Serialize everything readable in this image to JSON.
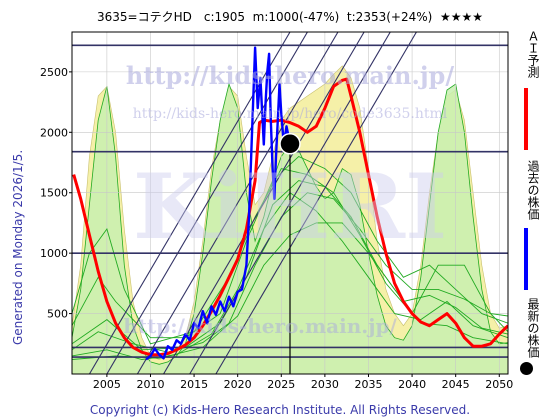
{
  "header": {
    "title": "3635=コテクHD　c:1905  m:1000(-47%)  t:2353(+24%)  ★★★★"
  },
  "side_note": "Generated on Monday 2026/1/5.",
  "watermarks": {
    "url_main": "http://kids-hero.main.jp/",
    "url_code": "http://kids-hero.main.jp/hero/code3635.html",
    "brand_big": "KiHRI",
    "brand_small": "http://kids-hero.main.jp/"
  },
  "copyright": "Copyright (c) Kids-Hero Research Institute. All Rights Reserved.",
  "legend": {
    "ai_label": "ＡＩ予測",
    "past_label": "過去の株価",
    "latest_label": "最新の株価"
  },
  "colors": {
    "ai_forecast": "#ff0000",
    "past_price": "#0000ff",
    "latest_dot": "#000000",
    "band_fill": "#f5f0a8",
    "green_fill": "#c8f0b0",
    "green_line": "#22aa22",
    "hline": "#333366",
    "diag": "#333366",
    "grid": "#c8c8c8"
  },
  "chart_data": {
    "type": "line",
    "xlim": [
      2001,
      2051
    ],
    "ylim": [
      0,
      2830
    ],
    "x_ticks": [
      "2005",
      "2010",
      "2015",
      "2020",
      "2025",
      "2030",
      "2035",
      "2040",
      "2045",
      "2050"
    ],
    "y_ticks": [
      "500",
      "1000",
      "1500",
      "2000",
      "2500"
    ],
    "grid": true,
    "reference_levels": [
      2720,
      1840,
      1000,
      220,
      140
    ],
    "current": {
      "x": 2026.0,
      "y": 1905
    },
    "current_year_marker": 2026.0,
    "diagonal_lines": [
      {
        "x1": 2011.5,
        "y1": 0,
        "x2": 2034.5,
        "y2": 2830
      },
      {
        "x1": 2008.5,
        "y1": 0,
        "x2": 2031.5,
        "y2": 2830
      },
      {
        "x1": 2005.0,
        "y1": 0,
        "x2": 2028.0,
        "y2": 2830
      },
      {
        "x1": 2014.5,
        "y1": 0,
        "x2": 2037.5,
        "y2": 2830
      },
      {
        "x1": 2017.5,
        "y1": 0,
        "x2": 2040.5,
        "y2": 2830
      },
      {
        "x1": 2003.0,
        "y1": 0,
        "x2": 2026.0,
        "y2": 2830
      }
    ],
    "band_yellow": [
      [
        [
          2001,
          400
        ],
        [
          2002,
          900
        ],
        [
          2003,
          1800
        ],
        [
          2004,
          2300
        ],
        [
          2005,
          2380
        ],
        [
          2006,
          2000
        ],
        [
          2007,
          1200
        ],
        [
          2008,
          600
        ],
        [
          2009,
          300
        ],
        [
          2010,
          150
        ],
        [
          2011,
          120
        ],
        [
          2012,
          150
        ],
        [
          2013,
          200
        ],
        [
          2014,
          300
        ],
        [
          2015,
          600
        ],
        [
          2016,
          1100
        ],
        [
          2017,
          1700
        ],
        [
          2018,
          2100
        ],
        [
          2019,
          2380
        ],
        [
          2020,
          2300
        ],
        [
          2021,
          1800
        ],
        [
          2022,
          1400
        ],
        [
          2023,
          1500
        ],
        [
          2024,
          1800
        ],
        [
          2025,
          2100
        ],
        [
          2026,
          2200
        ],
        [
          2027,
          2250
        ],
        [
          2028,
          2300
        ],
        [
          2029,
          2350
        ],
        [
          2030,
          2400
        ],
        [
          2031,
          2480
        ],
        [
          2032,
          2550
        ],
        [
          2033,
          2450
        ],
        [
          2034,
          2200
        ],
        [
          2035,
          1700
        ],
        [
          2036,
          1100
        ],
        [
          2037,
          700
        ],
        [
          2038,
          500
        ],
        [
          2039,
          400
        ],
        [
          2040,
          500
        ],
        [
          2041,
          900
        ],
        [
          2042,
          1500
        ],
        [
          2043,
          2000
        ],
        [
          2044,
          2300
        ],
        [
          2045,
          2350
        ],
        [
          2046,
          2100
        ],
        [
          2047,
          1500
        ],
        [
          2048,
          900
        ],
        [
          2049,
          500
        ],
        [
          2050,
          380
        ],
        [
          2051,
          400
        ]
      ],
      [
        [
          2001,
          0
        ],
        [
          2051,
          0
        ]
      ]
    ],
    "band_green": [
      [
        [
          2001,
          300
        ],
        [
          2002,
          700
        ],
        [
          2003,
          1400
        ],
        [
          2004,
          2100
        ],
        [
          2005,
          2380
        ],
        [
          2006,
          1800
        ],
        [
          2007,
          900
        ],
        [
          2008,
          400
        ],
        [
          2009,
          200
        ],
        [
          2010,
          100
        ],
        [
          2011,
          80
        ],
        [
          2012,
          100
        ],
        [
          2013,
          150
        ],
        [
          2014,
          250
        ],
        [
          2015,
          500
        ],
        [
          2016,
          1000
        ],
        [
          2017,
          1600
        ],
        [
          2018,
          2100
        ],
        [
          2019,
          2400
        ],
        [
          2020,
          2200
        ],
        [
          2021,
          1500
        ],
        [
          2022,
          1100
        ],
        [
          2023,
          1300
        ],
        [
          2024,
          1600
        ],
        [
          2025,
          1800
        ],
        [
          2026,
          1900
        ],
        [
          2027,
          1850
        ],
        [
          2028,
          1700
        ],
        [
          2029,
          1550
        ],
        [
          2030,
          1450
        ],
        [
          2031,
          1500
        ],
        [
          2032,
          1700
        ],
        [
          2033,
          1650
        ],
        [
          2034,
          1400
        ],
        [
          2035,
          1000
        ],
        [
          2036,
          650
        ],
        [
          2037,
          400
        ],
        [
          2038,
          300
        ],
        [
          2039,
          280
        ],
        [
          2040,
          400
        ],
        [
          2041,
          800
        ],
        [
          2042,
          1400
        ],
        [
          2043,
          2000
        ],
        [
          2044,
          2350
        ],
        [
          2045,
          2400
        ],
        [
          2046,
          2000
        ],
        [
          2047,
          1300
        ],
        [
          2048,
          700
        ],
        [
          2049,
          350
        ],
        [
          2050,
          250
        ],
        [
          2051,
          260
        ]
      ],
      [
        [
          2001,
          0
        ],
        [
          2051,
          0
        ]
      ]
    ],
    "green_lines": [
      [
        [
          2001,
          200
        ],
        [
          2004,
          350
        ],
        [
          2008,
          250
        ],
        [
          2012,
          180
        ],
        [
          2016,
          260
        ],
        [
          2019,
          420
        ],
        [
          2022,
          900
        ],
        [
          2025,
          1300
        ],
        [
          2028,
          1500
        ],
        [
          2031,
          1450
        ],
        [
          2034,
          1200
        ],
        [
          2037,
          900
        ],
        [
          2040,
          700
        ],
        [
          2043,
          700
        ],
        [
          2046,
          620
        ],
        [
          2049,
          500
        ],
        [
          2051,
          480
        ]
      ],
      [
        [
          2001,
          400
        ],
        [
          2004,
          800
        ],
        [
          2006,
          600
        ],
        [
          2010,
          300
        ],
        [
          2014,
          300
        ],
        [
          2018,
          500
        ],
        [
          2021,
          1100
        ],
        [
          2024,
          1600
        ],
        [
          2027,
          1800
        ],
        [
          2030,
          1700
        ],
        [
          2033,
          1500
        ],
        [
          2036,
          1100
        ],
        [
          2039,
          800
        ],
        [
          2042,
          900
        ],
        [
          2045,
          700
        ],
        [
          2048,
          500
        ],
        [
          2051,
          420
        ]
      ],
      [
        [
          2001,
          150
        ],
        [
          2005,
          200
        ],
        [
          2009,
          120
        ],
        [
          2013,
          160
        ],
        [
          2017,
          330
        ],
        [
          2020,
          700
        ],
        [
          2023,
          1200
        ],
        [
          2026,
          1500
        ],
        [
          2029,
          1350
        ],
        [
          2032,
          1100
        ],
        [
          2035,
          800
        ],
        [
          2038,
          500
        ],
        [
          2041,
          450
        ],
        [
          2044,
          600
        ],
        [
          2047,
          400
        ],
        [
          2051,
          300
        ]
      ],
      [
        [
          2001,
          500
        ],
        [
          2003,
          1000
        ],
        [
          2005,
          1200
        ],
        [
          2007,
          700
        ],
        [
          2010,
          250
        ],
        [
          2015,
          350
        ],
        [
          2019,
          800
        ],
        [
          2022,
          1300
        ],
        [
          2025,
          1700
        ],
        [
          2028,
          1650
        ],
        [
          2031,
          1500
        ],
        [
          2034,
          1150
        ],
        [
          2037,
          750
        ],
        [
          2040,
          500
        ],
        [
          2043,
          900
        ],
        [
          2046,
          900
        ],
        [
          2049,
          500
        ],
        [
          2051,
          350
        ]
      ],
      [
        [
          2001,
          120
        ],
        [
          2006,
          150
        ],
        [
          2011,
          130
        ],
        [
          2016,
          220
        ],
        [
          2020,
          480
        ],
        [
          2023,
          900
        ],
        [
          2026,
          1150
        ],
        [
          2029,
          1250
        ],
        [
          2032,
          1250
        ],
        [
          2035,
          1000
        ],
        [
          2038,
          700
        ],
        [
          2041,
          420
        ],
        [
          2044,
          400
        ],
        [
          2047,
          300
        ],
        [
          2051,
          250
        ]
      ],
      [
        [
          2001,
          250
        ],
        [
          2005,
          450
        ],
        [
          2009,
          200
        ],
        [
          2014,
          220
        ],
        [
          2018,
          420
        ],
        [
          2021,
          800
        ],
        [
          2024,
          1400
        ],
        [
          2027,
          1600
        ],
        [
          2030,
          1550
        ],
        [
          2033,
          1300
        ],
        [
          2036,
          900
        ],
        [
          2039,
          600
        ],
        [
          2042,
          650
        ],
        [
          2045,
          550
        ],
        [
          2048,
          380
        ],
        [
          2051,
          330
        ]
      ]
    ],
    "series": [
      {
        "name": "AI予測",
        "role": "ai",
        "points": [
          [
            2001.2,
            1650
          ],
          [
            2002,
            1450
          ],
          [
            2003,
            1150
          ],
          [
            2004,
            850
          ],
          [
            2005,
            600
          ],
          [
            2006,
            420
          ],
          [
            2007,
            300
          ],
          [
            2008,
            220
          ],
          [
            2009,
            180
          ],
          [
            2010,
            160
          ],
          [
            2011,
            160
          ],
          [
            2012,
            170
          ],
          [
            2013,
            200
          ],
          [
            2014,
            240
          ],
          [
            2015,
            300
          ],
          [
            2016,
            400
          ],
          [
            2017,
            520
          ],
          [
            2018,
            650
          ],
          [
            2019,
            800
          ],
          [
            2020,
            950
          ],
          [
            2021,
            1200
          ],
          [
            2022,
            1600
          ],
          [
            2022.5,
            2080
          ],
          [
            2023,
            2100
          ],
          [
            2024,
            2090
          ],
          [
            2025,
            2100
          ],
          [
            2026,
            2080
          ],
          [
            2027,
            2050
          ],
          [
            2028,
            2000
          ],
          [
            2029,
            2050
          ],
          [
            2030,
            2200
          ],
          [
            2031,
            2380
          ],
          [
            2032,
            2430
          ],
          [
            2032.5,
            2440
          ],
          [
            2033,
            2300
          ],
          [
            2034,
            2000
          ],
          [
            2035,
            1650
          ],
          [
            2036,
            1300
          ],
          [
            2037,
            1000
          ],
          [
            2038,
            750
          ],
          [
            2039,
            600
          ],
          [
            2040,
            500
          ],
          [
            2041,
            430
          ],
          [
            2042,
            400
          ],
          [
            2043,
            450
          ],
          [
            2044,
            500
          ],
          [
            2045,
            420
          ],
          [
            2046,
            300
          ],
          [
            2047,
            230
          ],
          [
            2048,
            230
          ],
          [
            2049,
            250
          ],
          [
            2050,
            330
          ],
          [
            2051,
            400
          ]
        ]
      },
      {
        "name": "過去の株価",
        "role": "past",
        "points": [
          [
            2009.5,
            120
          ],
          [
            2010,
            150
          ],
          [
            2010.5,
            210
          ],
          [
            2011,
            160
          ],
          [
            2011.5,
            130
          ],
          [
            2012,
            230
          ],
          [
            2012.5,
            200
          ],
          [
            2013,
            280
          ],
          [
            2013.5,
            250
          ],
          [
            2014,
            330
          ],
          [
            2014.5,
            280
          ],
          [
            2015,
            420
          ],
          [
            2015.5,
            380
          ],
          [
            2016,
            520
          ],
          [
            2016.5,
            420
          ],
          [
            2017,
            560
          ],
          [
            2017.5,
            490
          ],
          [
            2018,
            600
          ],
          [
            2018.5,
            520
          ],
          [
            2019,
            640
          ],
          [
            2019.5,
            560
          ],
          [
            2020,
            680
          ],
          [
            2020.5,
            700
          ],
          [
            2021,
            900
          ],
          [
            2021.3,
            1300
          ],
          [
            2021.6,
            1900
          ],
          [
            2022,
            2700
          ],
          [
            2022.3,
            2200
          ],
          [
            2022.6,
            2450
          ],
          [
            2023,
            1900
          ],
          [
            2023.2,
            2250
          ],
          [
            2023.4,
            2500
          ],
          [
            2023.6,
            2650
          ],
          [
            2023.8,
            2100
          ],
          [
            2024,
            1700
          ],
          [
            2024.2,
            1450
          ],
          [
            2024.4,
            1800
          ],
          [
            2024.6,
            2100
          ],
          [
            2024.8,
            2400
          ],
          [
            2025,
            2150
          ],
          [
            2025.3,
            1900
          ],
          [
            2025.6,
            2050
          ],
          [
            2026,
            1905
          ]
        ]
      }
    ]
  }
}
